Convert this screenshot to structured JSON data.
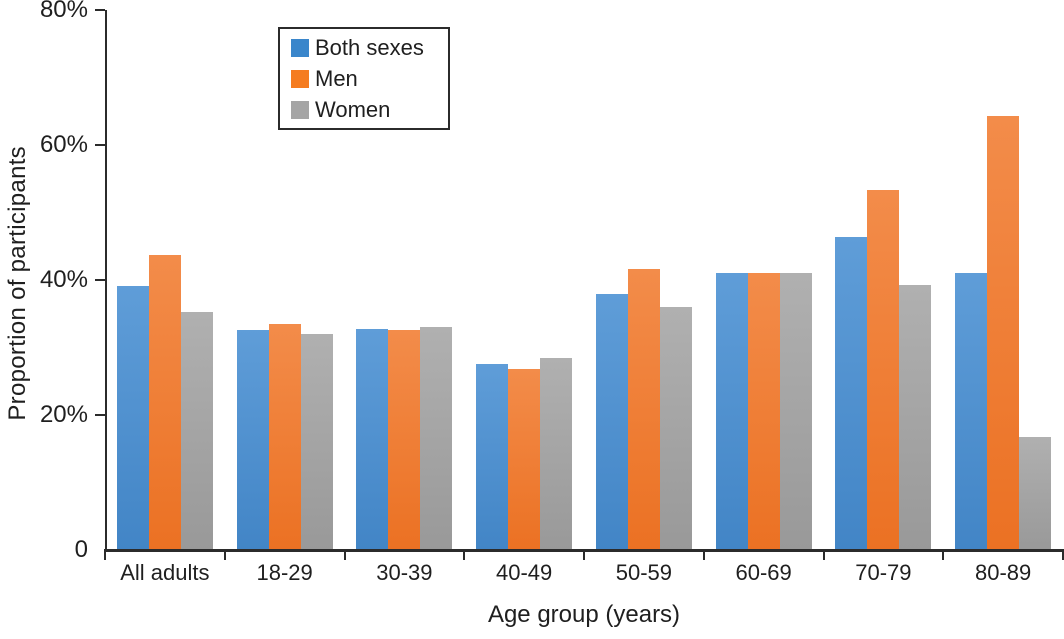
{
  "chart_data": {
    "type": "bar",
    "title": "",
    "xlabel": "Age group (years)",
    "ylabel": "Proportion of participants",
    "ylim": [
      0,
      80
    ],
    "grid": false,
    "legend_position": "top-left-inset",
    "yticks": [
      {
        "value": 80,
        "label": "80%"
      },
      {
        "value": 60,
        "label": "60%"
      },
      {
        "value": 40,
        "label": "40%"
      },
      {
        "value": 20,
        "label": "20%"
      },
      {
        "value": 0,
        "label": "0"
      }
    ],
    "categories": [
      "All adults",
      "18-29",
      "30-39",
      "40-49",
      "50-59",
      "60-69",
      "70-79",
      "80-89"
    ],
    "series": [
      {
        "name": "Both sexes",
        "legend_color": "#3a86cb",
        "gradient_top": "#5f9dd8",
        "gradient_bottom": "#4285c6",
        "values": [
          39.1,
          32.6,
          32.7,
          27.6,
          37.9,
          41.1,
          46.4,
          41.0
        ]
      },
      {
        "name": "Men",
        "legend_color": "#f57c20",
        "gradient_top": "#f38c4a",
        "gradient_bottom": "#eb7123",
        "values": [
          43.7,
          33.5,
          32.6,
          26.8,
          41.7,
          41.1,
          53.3,
          64.3
        ]
      },
      {
        "name": "Women",
        "legend_color": "#a5a5a5",
        "gradient_top": "#b0b0b0",
        "gradient_bottom": "#999999",
        "values": [
          35.3,
          32.0,
          33.0,
          28.5,
          36.0,
          41.0,
          39.2,
          16.7
        ]
      }
    ]
  },
  "colors": {
    "axis": "#2b2b2b",
    "text": "#1f1f1f",
    "background": "#ffffff",
    "legend_border": "#2b2b2b"
  }
}
